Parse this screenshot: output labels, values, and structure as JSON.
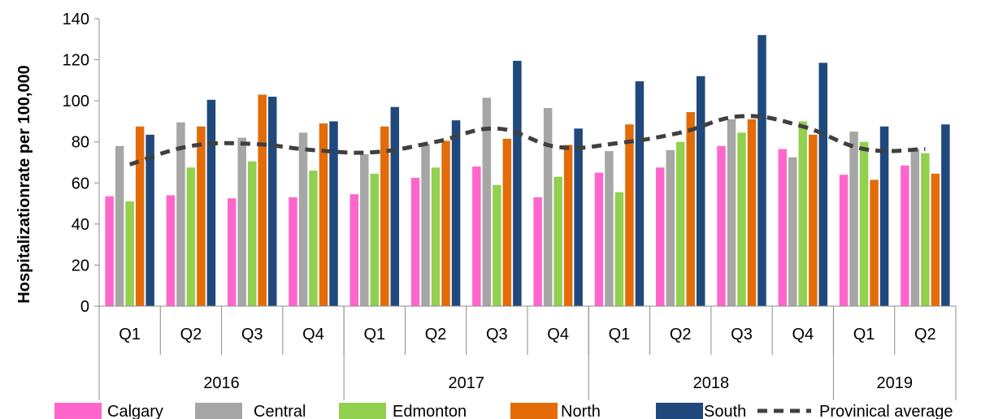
{
  "chart_data": {
    "type": "bar",
    "ylabel": "Hospitalizationrate per 100,000",
    "ylim": [
      0,
      140
    ],
    "yticks": [
      0,
      20,
      40,
      60,
      80,
      100,
      120,
      140
    ],
    "grid": false,
    "legend_placement": "bottom",
    "categories": [
      "Q1",
      "Q2",
      "Q3",
      "Q4",
      "Q1",
      "Q2",
      "Q3",
      "Q4",
      "Q1",
      "Q2",
      "Q3",
      "Q4",
      "Q1",
      "Q2"
    ],
    "years": [
      {
        "label": "2016",
        "span": 4
      },
      {
        "label": "2017",
        "span": 4
      },
      {
        "label": "2018",
        "span": 4
      },
      {
        "label": "2019",
        "span": 2
      }
    ],
    "series": [
      {
        "name": "Calgary",
        "color": "#ff66cc",
        "values": [
          53.5,
          54,
          52.5,
          53,
          54.5,
          62.5,
          68,
          53,
          65,
          67.5,
          78,
          76.5,
          64,
          68.5
        ]
      },
      {
        "name": "Central",
        "color": "#a6a6a6",
        "values": [
          78,
          89.5,
          82,
          84.5,
          74,
          79,
          101.5,
          96.5,
          75.5,
          76,
          91,
          72.5,
          85,
          76.5
        ]
      },
      {
        "name": "Edmonton",
        "color": "#92d050",
        "values": [
          51,
          67.5,
          70.5,
          66,
          64.5,
          67.5,
          59,
          63,
          55.5,
          80,
          84.5,
          90,
          80,
          74.5
        ]
      },
      {
        "name": "North",
        "color": "#e36c09",
        "values": [
          87.5,
          87.5,
          103,
          89,
          87.5,
          80.5,
          81.5,
          78.5,
          88.5,
          94.5,
          91,
          83.5,
          61.5,
          64.5
        ]
      },
      {
        "name": "South",
        "color": "#1f497d",
        "values": [
          83.5,
          100.5,
          102,
          90,
          97,
          90.5,
          119.5,
          86.5,
          109.5,
          112,
          132,
          118.5,
          87.5,
          88.5
        ]
      }
    ],
    "line": {
      "name": "Provinical average",
      "color": "#404040",
      "values": [
        69,
        78,
        79,
        76,
        75,
        80,
        86.5,
        77.5,
        79.5,
        84.5,
        92.5,
        87.5,
        76.5,
        76.5
      ]
    }
  }
}
